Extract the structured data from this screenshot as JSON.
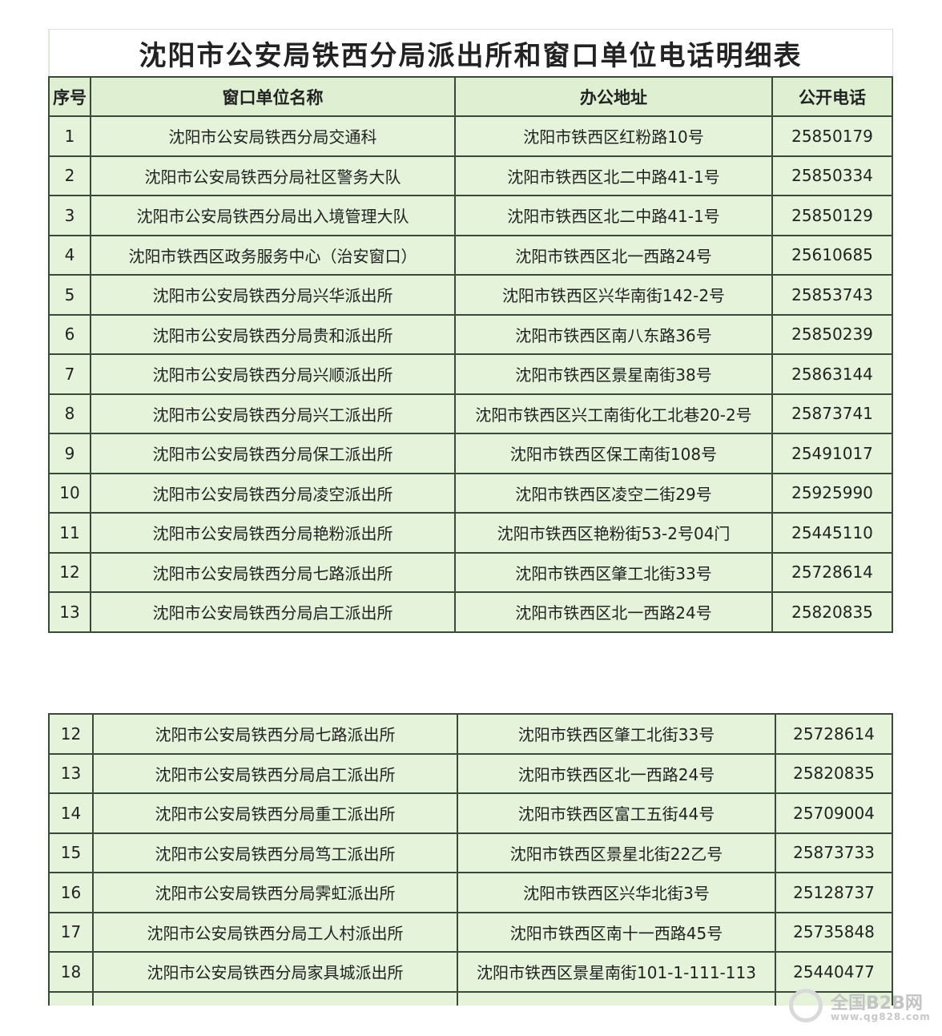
{
  "title": "沈阳市公安局铁西分局派出所和窗口单位电话明细表",
  "headers": [
    "序号",
    "窗口单位名称",
    "办公地址",
    "公开电话"
  ],
  "table1_rows": [
    [
      "1",
      "沈阳市公安局铁西分局交通科",
      "沈阳市铁西区红粉路10号",
      "25850179"
    ],
    [
      "2",
      "沈阳市公安局铁西分局社区警务大队",
      "沈阳市铁西区北二中路41-1号",
      "25850334"
    ],
    [
      "3",
      "沈阳市公安局铁西分局出入境管理大队",
      "沈阳市铁西区北二中路41-1号",
      "25850129"
    ],
    [
      "4",
      "沈阳市铁西区政务服务中心（治安窗口）",
      "沈阳市铁西区北一西路24号",
      "25610685"
    ],
    [
      "5",
      "沈阳市公安局铁西分局兴华派出所",
      "沈阳市铁西区兴华南街142-2号",
      "25853743"
    ],
    [
      "6",
      "沈阳市公安局铁西分局贵和派出所",
      "沈阳市铁西区南八东路36号",
      "25850239"
    ],
    [
      "7",
      "沈阳市公安局铁西分局兴顺派出所",
      "沈阳市铁西区景星南街38号",
      "25863144"
    ],
    [
      "8",
      "沈阳市公安局铁西分局兴工派出所",
      "沈阳市铁西区兴工南街化工北巷20-2号",
      "25873741"
    ],
    [
      "9",
      "沈阳市公安局铁西分局保工派出所",
      "沈阳市铁西区保工南街108号",
      "25491017"
    ],
    [
      "10",
      "沈阳市公安局铁西分局凌空派出所",
      "沈阳市铁西区凌空二街29号",
      "25925990"
    ],
    [
      "11",
      "沈阳市公安局铁西分局艳粉派出所",
      "沈阳市铁西区艳粉街53-2号04门",
      "25445110"
    ],
    [
      "12",
      "沈阳市公安局铁西分局七路派出所",
      "沈阳市铁西区肇工北街33号",
      "25728614"
    ],
    [
      "13",
      "沈阳市公安局铁西分局启工派出所",
      "沈阳市铁西区北一西路24号",
      "25820835"
    ]
  ],
  "table2_rows": [
    [
      "12",
      "沈阳市公安局铁西分局七路派出所",
      "沈阳市铁西区肇工北街33号",
      "25728614"
    ],
    [
      "13",
      "沈阳市公安局铁西分局启工派出所",
      "沈阳市铁西区北一西路24号",
      "25820835"
    ],
    [
      "14",
      "沈阳市公安局铁西分局重工派出所",
      "沈阳市铁西区富工五街44号",
      "25709004"
    ],
    [
      "15",
      "沈阳市公安局铁西分局笃工派出所",
      "沈阳市铁西区景星北街22乙号",
      "25873733"
    ],
    [
      "16",
      "沈阳市公安局铁西分局霁虹派出所",
      "沈阳市铁西区兴华北街3号",
      "25128737"
    ],
    [
      "17",
      "沈阳市公安局铁西分局工人村派出所",
      "沈阳市铁西区南十一西路45号",
      "25735848"
    ],
    [
      "18",
      "沈阳市公安局铁西分局家具城派出所",
      "沈阳市铁西区景星南街101-1-111-113",
      "25440477"
    ]
  ],
  "watermark": {
    "name": "全国B2B网",
    "url": "www.qg828.com"
  },
  "colors": {
    "cell_bg": "#e4f3da",
    "border": "#3a4a3a"
  }
}
